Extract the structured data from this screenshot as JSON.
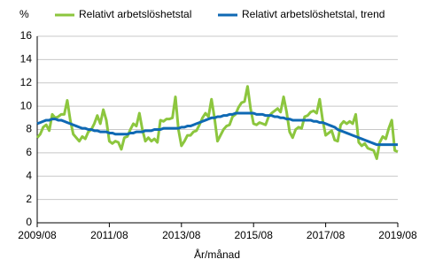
{
  "chart_data": {
    "type": "line",
    "y_label": "%",
    "x_label": "År/månad",
    "categories": [
      "2009/08",
      null,
      null,
      null,
      null,
      null,
      null,
      null,
      null,
      null,
      null,
      null,
      null,
      null,
      null,
      null,
      null,
      null,
      null,
      null,
      null,
      null,
      null,
      null,
      "2011/08",
      null,
      null,
      null,
      null,
      null,
      null,
      null,
      null,
      null,
      null,
      null,
      null,
      null,
      null,
      null,
      null,
      null,
      null,
      null,
      null,
      null,
      null,
      null,
      "2013/08",
      null,
      null,
      null,
      null,
      null,
      null,
      null,
      null,
      null,
      null,
      null,
      null,
      null,
      null,
      null,
      null,
      null,
      null,
      null,
      null,
      null,
      null,
      null,
      "2015/08",
      null,
      null,
      null,
      null,
      null,
      null,
      null,
      null,
      null,
      null,
      null,
      null,
      null,
      null,
      null,
      null,
      null,
      null,
      null,
      null,
      null,
      null,
      null,
      "2017/08",
      null,
      null,
      null,
      null,
      null,
      null,
      null,
      null,
      null,
      null,
      null,
      null,
      null,
      null,
      null,
      null,
      null,
      null,
      null,
      null,
      null,
      null,
      null,
      "2019/08"
    ],
    "series": [
      {
        "name": "Relativt arbetslöshetstal",
        "color": "#8cc63e",
        "values": [
          7.3,
          7.6,
          8.2,
          8.4,
          7.9,
          9.3,
          9.0,
          9.1,
          9.3,
          9.3,
          10.5,
          8.8,
          7.6,
          7.3,
          7.0,
          7.4,
          7.2,
          7.8,
          8.0,
          8.5,
          9.2,
          8.5,
          9.7,
          8.8,
          7.0,
          6.8,
          7.0,
          6.9,
          6.3,
          7.3,
          7.4,
          8.0,
          8.5,
          8.3,
          9.4,
          8.0,
          7.0,
          7.3,
          7.0,
          7.2,
          6.9,
          8.8,
          8.7,
          8.9,
          8.9,
          9.0,
          10.8,
          8.0,
          6.6,
          7.0,
          7.5,
          7.5,
          7.8,
          7.9,
          8.4,
          9.0,
          9.4,
          9.1,
          10.6,
          9.0,
          7.0,
          7.5,
          8.0,
          8.3,
          8.4,
          9.1,
          9.3,
          9.9,
          10.3,
          10.4,
          11.7,
          9.8,
          8.5,
          8.4,
          8.6,
          8.5,
          8.4,
          9.1,
          9.4,
          9.6,
          9.8,
          9.5,
          10.8,
          9.5,
          7.8,
          7.3,
          8.0,
          8.2,
          8.1,
          9.1,
          9.2,
          9.5,
          9.6,
          9.4,
          10.6,
          8.8,
          7.5,
          7.7,
          7.9,
          7.1,
          7.0,
          8.4,
          8.7,
          8.5,
          8.7,
          8.5,
          9.3,
          6.9,
          6.6,
          6.8,
          6.4,
          6.3,
          6.2,
          5.5,
          6.9,
          7.4,
          7.2,
          8.1,
          8.8,
          6.2,
          6.1
        ]
      },
      {
        "name": "Relativt arbetslöshetstal, trend",
        "color": "#0f69b4",
        "values": [
          8.5,
          8.6,
          8.7,
          8.8,
          8.8,
          8.9,
          8.9,
          8.8,
          8.8,
          8.7,
          8.6,
          8.5,
          8.4,
          8.3,
          8.2,
          8.1,
          8.1,
          8.0,
          8.0,
          7.9,
          7.9,
          7.8,
          7.8,
          7.8,
          7.7,
          7.7,
          7.6,
          7.6,
          7.6,
          7.6,
          7.6,
          7.7,
          7.7,
          7.8,
          7.8,
          7.8,
          7.9,
          7.9,
          7.9,
          8.0,
          8.0,
          8.0,
          8.1,
          8.1,
          8.1,
          8.1,
          8.1,
          8.1,
          8.2,
          8.2,
          8.3,
          8.3,
          8.4,
          8.5,
          8.6,
          8.7,
          8.8,
          8.9,
          9.0,
          9.0,
          9.1,
          9.1,
          9.2,
          9.2,
          9.3,
          9.3,
          9.4,
          9.4,
          9.4,
          9.4,
          9.4,
          9.4,
          9.4,
          9.3,
          9.3,
          9.3,
          9.2,
          9.2,
          9.2,
          9.1,
          9.1,
          9.0,
          9.0,
          8.9,
          8.9,
          8.8,
          8.8,
          8.8,
          8.8,
          8.8,
          8.8,
          8.8,
          8.7,
          8.7,
          8.6,
          8.6,
          8.5,
          8.4,
          8.3,
          8.2,
          8.0,
          7.9,
          7.8,
          7.7,
          7.6,
          7.5,
          7.4,
          7.3,
          7.2,
          7.1,
          7.0,
          6.9,
          6.8,
          6.7,
          6.7,
          6.7,
          6.7,
          6.7,
          6.7,
          6.7,
          6.7
        ]
      }
    ],
    "ylim": [
      0,
      16
    ],
    "yticks": [
      0,
      2,
      4,
      6,
      8,
      10,
      12,
      14,
      16
    ],
    "grid": true,
    "legend": "top"
  }
}
